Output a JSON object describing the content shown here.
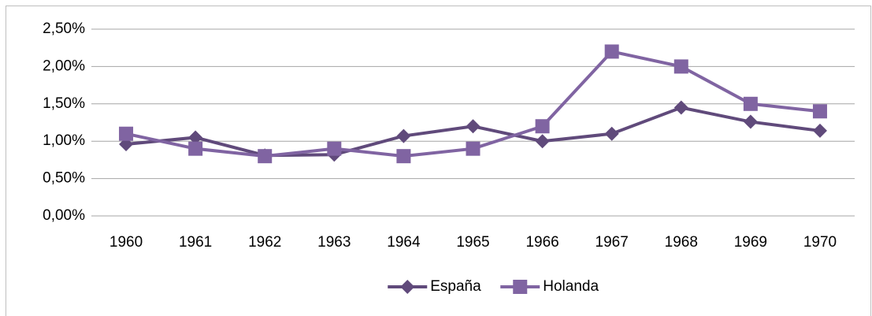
{
  "chart_data": {
    "type": "line",
    "categories": [
      "1960",
      "1961",
      "1962",
      "1963",
      "1964",
      "1965",
      "1966",
      "1967",
      "1968",
      "1969",
      "1970"
    ],
    "series": [
      {
        "name": "España",
        "color": "#604a7b",
        "marker": "diamond",
        "values": [
          0.96,
          1.05,
          0.81,
          0.82,
          1.07,
          1.2,
          1.0,
          1.1,
          1.45,
          1.26,
          1.14
        ]
      },
      {
        "name": "Holanda",
        "color": "#8064a2",
        "marker": "square",
        "values": [
          1.1,
          0.9,
          0.8,
          0.9,
          0.8,
          0.9,
          1.2,
          2.2,
          2.0,
          1.5,
          1.4
        ]
      }
    ],
    "ylim": [
      0,
      2.5
    ],
    "yticks": [
      {
        "value": 0,
        "label": "0,00%"
      },
      {
        "value": 0.5,
        "label": "0,50%"
      },
      {
        "value": 1,
        "label": "1,00%"
      },
      {
        "value": 1.5,
        "label": "1,50%"
      },
      {
        "value": 2,
        "label": "2,00%"
      },
      {
        "value": 2.5,
        "label": "2,50%"
      }
    ],
    "grid": true,
    "legend": "bottom"
  }
}
